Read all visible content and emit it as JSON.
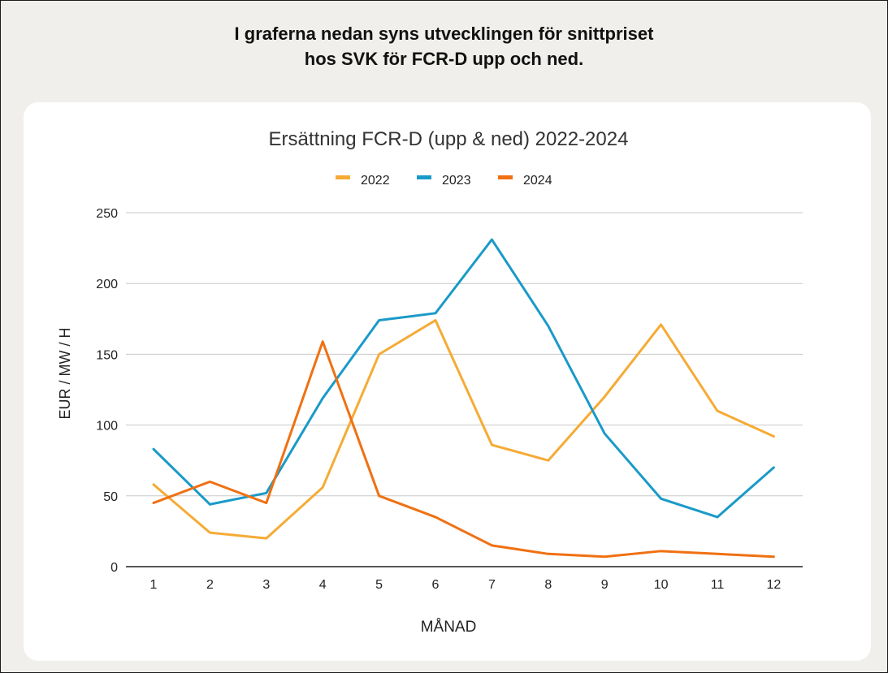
{
  "header": {
    "line1": "I graferna nedan syns utvecklingen för snittpriset",
    "line2": "hos SVK för FCR-D upp och ned."
  },
  "chart_data": {
    "type": "line",
    "title": "Ersättning FCR-D (upp & ned) 2022-2024",
    "xlabel": "MÅNAD",
    "ylabel": "EUR / MW / H",
    "categories": [
      "1",
      "2",
      "3",
      "4",
      "5",
      "6",
      "7",
      "8",
      "9",
      "10",
      "11",
      "12"
    ],
    "ylim": [
      0,
      250
    ],
    "yticks": [
      0,
      50,
      100,
      150,
      200,
      250
    ],
    "grid": true,
    "legend": "top",
    "series": [
      {
        "name": "2022",
        "color": "#f5ab35",
        "values": [
          58,
          24,
          20,
          56,
          150,
          174,
          86,
          75,
          120,
          171,
          110,
          92
        ]
      },
      {
        "name": "2023",
        "color": "#1a9ac8",
        "values": [
          83,
          44,
          52,
          119,
          174,
          179,
          231,
          170,
          94,
          48,
          35,
          70
        ]
      },
      {
        "name": "2024",
        "color": "#f07012",
        "values": [
          45,
          60,
          45,
          159,
          50,
          35,
          15,
          9,
          7,
          11,
          9,
          7
        ]
      }
    ]
  }
}
